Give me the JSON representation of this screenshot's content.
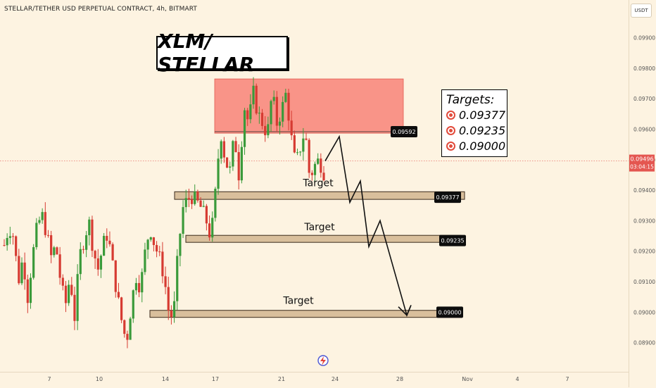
{
  "header": {
    "symbol_title": "STELLAR/TETHER USD PERPETUAL CONTRACT, 4h, BITMART"
  },
  "annotations": {
    "main_title": "XLM/ STELLAR",
    "targets_heading": "Targets:",
    "targets": [
      "0.09377",
      "0.09235",
      "0.09000"
    ],
    "target_label": "Target",
    "target_icon": "direct-hit-icon"
  },
  "price_axis": {
    "currency": "USDT",
    "current_price": "0.09496",
    "countdown": "03:04:15"
  },
  "colors": {
    "up": "#26a69a",
    "down": "#ef5350",
    "up_candle": "#3a9a3a",
    "down_candle": "#d63b32",
    "resistance_zone": "#f87c72",
    "target_zone": "#d9bf9c",
    "background": "#fdf3e1",
    "price_line": "#e45b54"
  },
  "chart_data": {
    "type": "candlestick",
    "title": "STELLAR/TETHER USD PERPETUAL CONTRACT, 4h, BITMART",
    "xlabel": "",
    "ylabel": "",
    "ylim": [
      0.0887,
      0.1001
    ],
    "grid": false,
    "y_ticks": [
      "0.08900",
      "0.09000",
      "0.09100",
      "0.09200",
      "0.09300",
      "0.09400",
      "0.09500",
      "0.09600",
      "0.09700",
      "0.09800",
      "0.09900"
    ],
    "x_ticks": [
      "7",
      "10",
      "14",
      "17",
      "21",
      "24",
      "28",
      "Nov",
      "4",
      "7"
    ],
    "price_levels": [
      {
        "label": "0.09592",
        "value": 0.09592
      },
      {
        "label": "0.09377",
        "value": 0.09377
      },
      {
        "label": "0.09235",
        "value": 0.09235
      },
      {
        "label": "0.09000",
        "value": 0.09
      }
    ],
    "current_price": 0.09496,
    "resistance_zone": {
      "top": 0.09765,
      "bottom": 0.09587
    },
    "target_zones": [
      {
        "top": 0.09395,
        "bottom": 0.0937,
        "label": "Target"
      },
      {
        "top": 0.09252,
        "bottom": 0.09229,
        "label": "Target"
      },
      {
        "top": 0.09006,
        "bottom": 0.08983,
        "label": "Target"
      }
    ],
    "projected_path": [
      0.09496,
      0.09576,
      0.0936,
      0.0943,
      0.09215,
      0.093,
      0.0899,
      0.09023
    ],
    "candle_anchors": [
      0.0922,
      0.0928,
      0.0925,
      0.091,
      0.0918,
      0.0905,
      0.0918,
      0.0928,
      0.0932,
      0.0926,
      0.0918,
      0.0922,
      0.091,
      0.0902,
      0.0912,
      0.0898,
      0.0918,
      0.0924,
      0.093,
      0.092,
      0.0914,
      0.0922,
      0.0926,
      0.0916,
      0.0906,
      0.0897,
      0.089,
      0.0902,
      0.0912,
      0.0908,
      0.092,
      0.0928,
      0.0922,
      0.0918,
      0.0912,
      0.09,
      0.0898,
      0.092,
      0.0934,
      0.0937,
      0.0938,
      0.0936,
      0.0934,
      0.093,
      0.0924,
      0.094,
      0.096,
      0.095,
      0.0946,
      0.0958,
      0.0944,
      0.0968,
      0.0962,
      0.0972,
      0.0965,
      0.0962,
      0.0958,
      0.0972,
      0.0962,
      0.0966,
      0.0972,
      0.0958,
      0.0948,
      0.0954,
      0.096,
      0.0944,
      0.0948,
      0.095,
      0.0946
    ]
  }
}
